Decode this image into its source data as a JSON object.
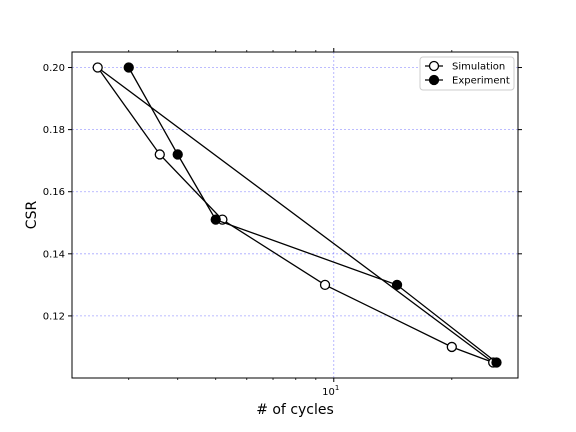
{
  "chart_data": {
    "type": "line",
    "xscale": "log",
    "xlim": [
      2.15,
      29.5
    ],
    "ylim": [
      0.1,
      0.205
    ],
    "xlabel": "# of cycles",
    "ylabel": "CSR",
    "grid": true,
    "legend_position": "top-right",
    "x_major_ticks": [
      {
        "value": 10,
        "base": "10",
        "exp": "1"
      }
    ],
    "x_minor_ticks": [
      3,
      4,
      5,
      6,
      7,
      8,
      9,
      20
    ],
    "y_ticks": [
      0.12,
      0.14,
      0.16,
      0.18,
      0.2
    ],
    "y_tick_labels": [
      "0.12",
      "0.14",
      "0.16",
      "0.18",
      "0.20"
    ],
    "series": [
      {
        "name": "Simulation",
        "marker": "open-circle",
        "color": "#000000",
        "points": [
          {
            "x": 2.5,
            "y": 0.2
          },
          {
            "x": 25.5,
            "y": 0.105
          },
          {
            "x": 20.0,
            "y": 0.11
          },
          {
            "x": 9.5,
            "y": 0.13
          },
          {
            "x": 5.2,
            "y": 0.151
          },
          {
            "x": 3.6,
            "y": 0.172
          },
          {
            "x": 2.5,
            "y": 0.2
          }
        ]
      },
      {
        "name": "Experiment",
        "marker": "filled-circle",
        "color": "#000000",
        "points": [
          {
            "x": 3.0,
            "y": 0.2
          },
          {
            "x": 4.0,
            "y": 0.172
          },
          {
            "x": 5.0,
            "y": 0.151
          },
          {
            "x": 14.5,
            "y": 0.13
          },
          {
            "x": 26.0,
            "y": 0.105
          }
        ]
      }
    ]
  }
}
